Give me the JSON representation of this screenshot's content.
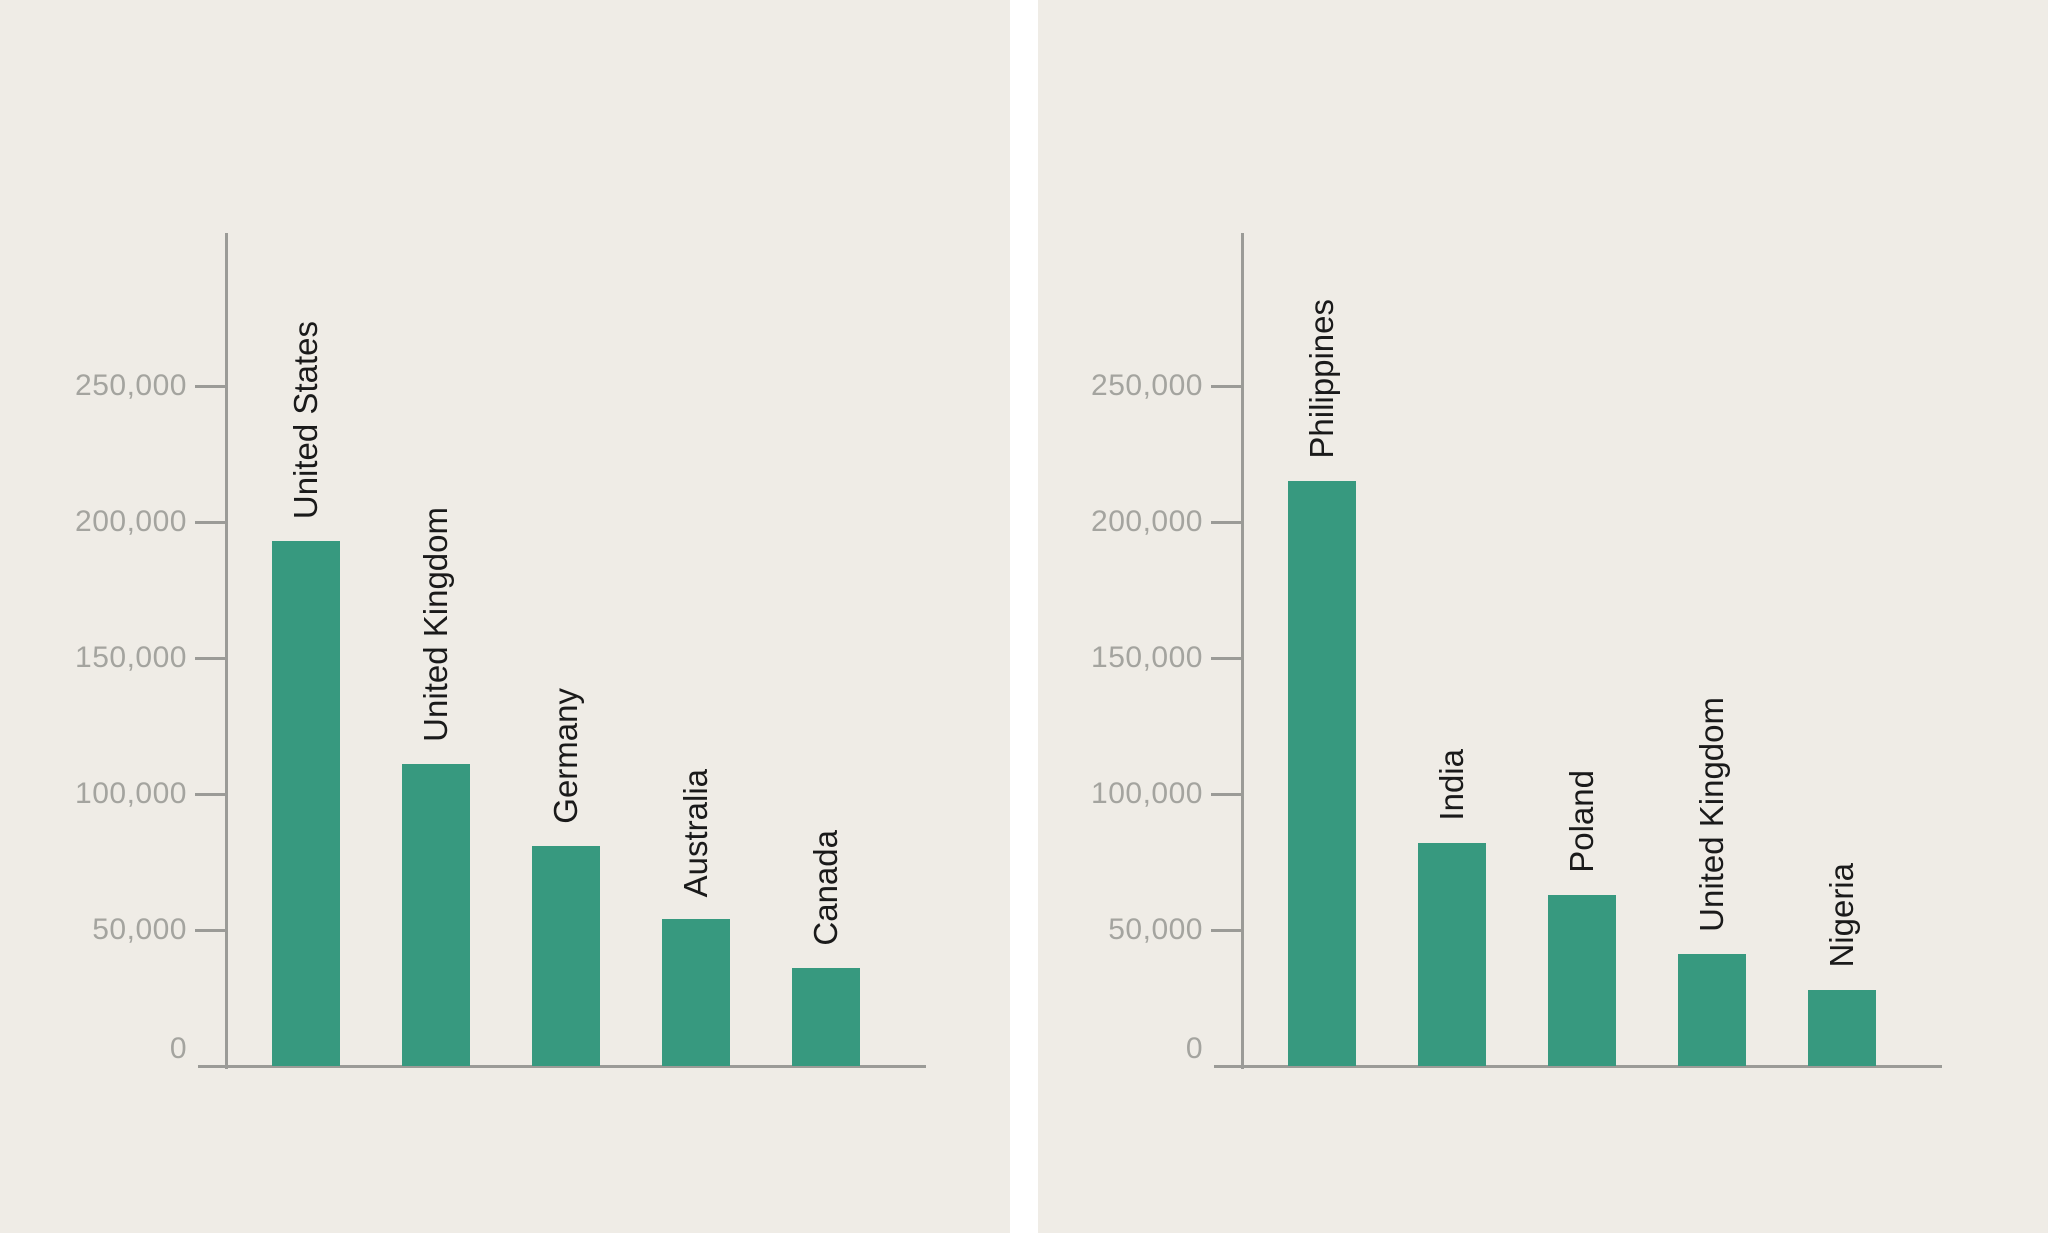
{
  "figure": {
    "panel_background": "#efece6",
    "divider_color": "#ffffff"
  },
  "colors": {
    "bar": "#37997f",
    "axis": "#9b9b97",
    "tick_label": "#a4a49f",
    "category_label": "#1a1a1a"
  },
  "chart_data": [
    {
      "type": "bar",
      "title": "",
      "xlabel": "",
      "ylabel": "",
      "categories": [
        "United States",
        "United Kingdom",
        "Germany",
        "Australia",
        "Canada"
      ],
      "values": [
        193000,
        111000,
        81000,
        54000,
        36000
      ],
      "y_ticks": [
        {
          "value": 0,
          "label": "0"
        },
        {
          "value": 50000,
          "label": "50,000"
        },
        {
          "value": 100000,
          "label": "100,000"
        },
        {
          "value": 150000,
          "label": "150,000"
        },
        {
          "value": 200000,
          "label": "200,000"
        },
        {
          "value": 250000,
          "label": "250,000"
        }
      ],
      "ylim": [
        0,
        306000
      ],
      "grid": false,
      "legend": "none",
      "bar_label_style": "rotated-90-above-bar"
    },
    {
      "type": "bar",
      "title": "",
      "xlabel": "",
      "ylabel": "",
      "categories": [
        "Philippines",
        "India",
        "Poland",
        "United Kingdom",
        "Nigeria"
      ],
      "values": [
        215000,
        82000,
        63000,
        41000,
        28000
      ],
      "y_ticks": [
        {
          "value": 0,
          "label": "0"
        },
        {
          "value": 50000,
          "label": "50,000"
        },
        {
          "value": 100000,
          "label": "100,000"
        },
        {
          "value": 150000,
          "label": "150,000"
        },
        {
          "value": 200000,
          "label": "200,000"
        },
        {
          "value": 250000,
          "label": "250,000"
        }
      ],
      "ylim": [
        0,
        306000
      ],
      "grid": false,
      "legend": "none",
      "bar_label_style": "rotated-90-above-bar"
    }
  ]
}
